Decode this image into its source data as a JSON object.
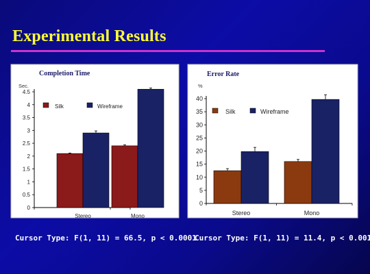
{
  "slide": {
    "title": "Experimental Results",
    "colors": {
      "title": "#ffff33",
      "rule": "#cc33cc",
      "background": "#0c0ca6"
    }
  },
  "stats": {
    "left": "Cursor Type: F(1, 11) = 66.5, p < 0.0001",
    "right": "Cursor Type: F(1, 11) = 11.4, p < 0.001"
  },
  "chart_data": [
    {
      "type": "bar",
      "title": "Completion Time",
      "ylabel": "Sec.",
      "categories": [
        "Stereo",
        "Mono"
      ],
      "series": [
        {
          "name": "Silk",
          "color": "#8b1a1a",
          "values": [
            2.1,
            2.4
          ],
          "errors": [
            0.02,
            0.04
          ]
        },
        {
          "name": "Wireframe",
          "color": "#1a2266",
          "values": [
            2.9,
            4.6
          ],
          "errors": [
            0.08,
            0.05
          ]
        }
      ],
      "ylim": [
        0,
        4.5
      ],
      "yticks": [
        "0",
        "0.5",
        "1",
        "1.5",
        "2",
        "2.5",
        "3",
        "3.5",
        "4",
        "4.5"
      ],
      "yticks_values": [
        0,
        0.5,
        1,
        1.5,
        2,
        2.5,
        3,
        3.5,
        4,
        4.5
      ],
      "legend": "top",
      "grid": false
    },
    {
      "type": "bar",
      "title": "Error Rate",
      "ylabel": "%",
      "categories": [
        "Stereo",
        "Mono"
      ],
      "series": [
        {
          "name": "Silk",
          "color": "#8b3a10",
          "values": [
            12.5,
            16
          ],
          "errors": [
            0.8,
            0.8
          ]
        },
        {
          "name": "Wireframe",
          "color": "#1a2266",
          "values": [
            19.8,
            39.7
          ],
          "errors": [
            1.6,
            1.8
          ]
        }
      ],
      "ylim": [
        0,
        40
      ],
      "yticks": [
        "0",
        "5",
        "10",
        "15",
        "20",
        "25",
        "30",
        "35",
        "40"
      ],
      "yticks_values": [
        0,
        5,
        10,
        15,
        20,
        25,
        30,
        35,
        40
      ],
      "legend": "top",
      "grid": false
    }
  ]
}
